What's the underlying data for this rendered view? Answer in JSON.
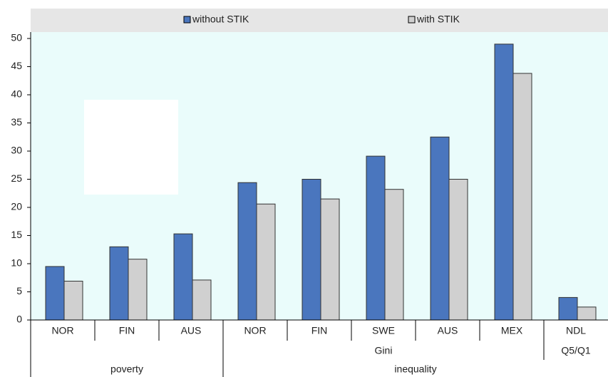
{
  "chart_data": {
    "type": "bar",
    "categories": [
      "NOR",
      "FIN",
      "AUS",
      "NOR",
      "FIN",
      "SWE",
      "AUS",
      "MEX",
      "NDL"
    ],
    "category_levels": [
      [
        null,
        null,
        null,
        "Gini",
        "Gini",
        "Gini",
        "Gini",
        "Gini",
        "Q5/Q1"
      ],
      [
        "poverty",
        "poverty",
        "poverty",
        "inequality",
        "inequality",
        "inequality",
        "inequality",
        "inequality",
        "inequality"
      ]
    ],
    "series": [
      {
        "name": "without STIK",
        "color": "#4a76be",
        "values": [
          9.5,
          13,
          15.3,
          24.4,
          25,
          29.1,
          32.5,
          49,
          4
        ]
      },
      {
        "name": "with STIK",
        "color": "#d0d0d0",
        "values": [
          6.9,
          10.8,
          7.1,
          20.6,
          21.5,
          23.2,
          25,
          43.8,
          2.3
        ]
      }
    ],
    "ylim": [
      0,
      50
    ],
    "yticks": [
      0,
      5,
      10,
      15,
      20,
      25,
      30,
      35,
      40,
      45,
      50
    ],
    "legend": "top"
  }
}
